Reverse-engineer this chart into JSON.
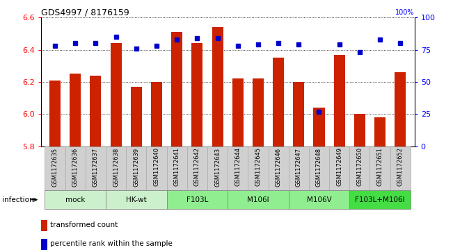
{
  "title": "GDS4997 / 8176159",
  "samples": [
    "GSM1172635",
    "GSM1172636",
    "GSM1172637",
    "GSM1172638",
    "GSM1172639",
    "GSM1172640",
    "GSM1172641",
    "GSM1172642",
    "GSM1172643",
    "GSM1172644",
    "GSM1172645",
    "GSM1172646",
    "GSM1172647",
    "GSM1172648",
    "GSM1172649",
    "GSM1172650",
    "GSM1172651",
    "GSM1172652"
  ],
  "red_values": [
    6.21,
    6.25,
    6.24,
    6.44,
    6.17,
    6.2,
    6.51,
    6.44,
    6.54,
    6.22,
    6.22,
    6.35,
    6.2,
    6.04,
    6.37,
    6.0,
    5.98,
    6.26
  ],
  "blue_values": [
    78,
    80,
    80,
    85,
    76,
    78,
    83,
    84,
    84,
    78,
    79,
    80,
    79,
    27,
    79,
    73,
    83,
    80
  ],
  "group_defs": [
    {
      "label": "mock",
      "start": 0,
      "end": 2,
      "color": "#ccf0cc"
    },
    {
      "label": "HK-wt",
      "start": 3,
      "end": 5,
      "color": "#ccf0cc"
    },
    {
      "label": "F103L",
      "start": 6,
      "end": 8,
      "color": "#90ee90"
    },
    {
      "label": "M106I",
      "start": 9,
      "end": 11,
      "color": "#90ee90"
    },
    {
      "label": "M106V",
      "start": 12,
      "end": 14,
      "color": "#90ee90"
    },
    {
      "label": "F103L+M106I",
      "start": 15,
      "end": 17,
      "color": "#44dd44"
    }
  ],
  "ylim_left": [
    5.8,
    6.6
  ],
  "ylim_right": [
    0,
    100
  ],
  "yticks_left": [
    5.8,
    6.0,
    6.2,
    6.4,
    6.6
  ],
  "yticks_right": [
    0,
    25,
    50,
    75,
    100
  ],
  "bar_bottom": 5.8,
  "bar_color_red": "#cc2200",
  "bar_color_blue": "#0000cc",
  "sample_box_color": "#d0d0d0",
  "sample_box_edge": "#aaaaaa",
  "infection_label": "infection",
  "legend_red": "transformed count",
  "legend_blue": "percentile rank within the sample"
}
